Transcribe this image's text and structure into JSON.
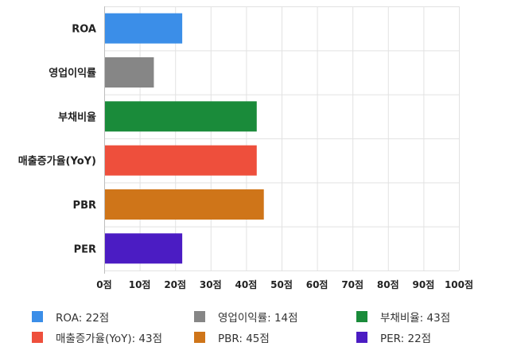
{
  "chart_data": {
    "type": "bar",
    "orientation": "horizontal",
    "categories": [
      "ROA",
      "영업이익률",
      "부채비율",
      "매출증가율(YoY)",
      "PBR",
      "PER"
    ],
    "values": [
      22,
      14,
      43,
      43,
      45,
      22
    ],
    "colors": [
      "#3b8ee8",
      "#868686",
      "#1a8b3a",
      "#ee4f3c",
      "#cf7519",
      "#4b1cc3"
    ],
    "xlim": [
      0,
      100
    ],
    "x_ticks": [
      "0점",
      "10점",
      "20점",
      "30점",
      "40점",
      "50점",
      "60점",
      "70점",
      "80점",
      "90점",
      "100점"
    ],
    "grid": true,
    "legend_position": "bottom",
    "legend": [
      {
        "label": "ROA: 22점",
        "color": "#3b8ee8"
      },
      {
        "label": "영업이익률: 14점",
        "color": "#868686"
      },
      {
        "label": "부채비율: 43점",
        "color": "#1a8b3a"
      },
      {
        "label": "매출증가율(YoY): 43점",
        "color": "#ee4f3c"
      },
      {
        "label": "PBR: 45점",
        "color": "#cf7519"
      },
      {
        "label": "PER: 22점",
        "color": "#4b1cc3"
      }
    ]
  }
}
